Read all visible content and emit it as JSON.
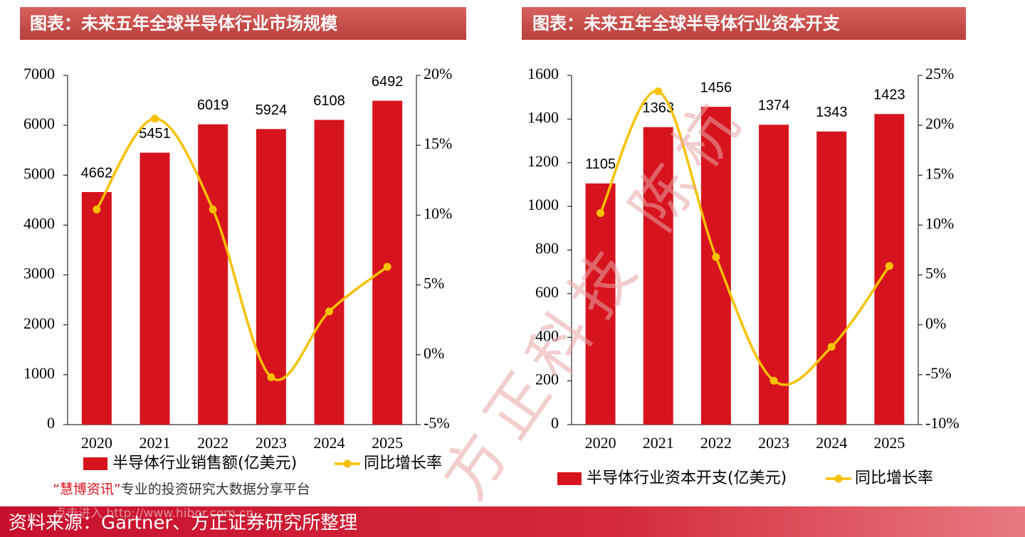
{
  "chart_data": [
    {
      "type": "combo",
      "title": "图表：未来五年全球半导体行业市场规模",
      "categories": [
        "2020",
        "2021",
        "2022",
        "2023",
        "2024",
        "2025"
      ],
      "series": [
        {
          "name": "半导体行业销售额(亿美元)",
          "type": "bar",
          "color": "#d7141e",
          "values": [
            4662,
            5451,
            6019,
            5924,
            6108,
            6492
          ]
        },
        {
          "name": "同比增长率",
          "type": "line",
          "axis": "y2",
          "color": "#f7c100",
          "values": [
            10.4,
            16.9,
            10.4,
            -1.6,
            3.1,
            6.3
          ]
        }
      ],
      "ylim": [
        0,
        7000
      ],
      "yticks": [
        0,
        1000,
        2000,
        3000,
        4000,
        5000,
        6000,
        7000
      ],
      "y2lim": [
        -5,
        20
      ],
      "y2ticks": [
        {
          "value": -5,
          "label": "-5%"
        },
        {
          "value": 0,
          "label": "0%"
        },
        {
          "value": 5,
          "label": "5%"
        },
        {
          "value": 10,
          "label": "10%"
        },
        {
          "value": 15,
          "label": "15%"
        },
        {
          "value": 20,
          "label": "20%"
        }
      ],
      "legend": "bottom"
    },
    {
      "type": "combo",
      "title": "图表：未来五年全球半导体行业资本开支",
      "categories": [
        "2020",
        "2021",
        "2022",
        "2023",
        "2024",
        "2025"
      ],
      "series": [
        {
          "name": "半导体行业资本开支(亿美元)",
          "type": "bar",
          "color": "#d7141e",
          "values": [
            1105,
            1363,
            1456,
            1374,
            1343,
            1423
          ]
        },
        {
          "name": "同比增长率",
          "type": "line",
          "axis": "y2",
          "color": "#f7c100",
          "values": [
            11.2,
            23.4,
            6.8,
            -5.6,
            -2.2,
            5.9
          ]
        }
      ],
      "ylim": [
        0,
        1600
      ],
      "yticks": [
        0,
        200,
        400,
        600,
        800,
        1000,
        1200,
        1400,
        1600
      ],
      "y2lim": [
        -10,
        25
      ],
      "y2ticks": [
        {
          "value": -10,
          "label": "-10%"
        },
        {
          "value": -5,
          "label": "-5%"
        },
        {
          "value": 0,
          "label": "0%"
        },
        {
          "value": 5,
          "label": "5%"
        },
        {
          "value": 10,
          "label": "10%"
        },
        {
          "value": 15,
          "label": "15%"
        },
        {
          "value": 20,
          "label": "20%"
        },
        {
          "value": 25,
          "label": "25%"
        }
      ],
      "legend": "bottom"
    }
  ],
  "watermark": "方正科技 陈杭",
  "promo": {
    "quote_open": "“",
    "brand": "慧博资讯",
    "quote_close": "”",
    "text": "专业的投资研究大数据分享平台",
    "link": "点击进入 http://www.hibor.com.cn"
  },
  "footer": "资料来源：Gartner、方正证券研究所整理"
}
